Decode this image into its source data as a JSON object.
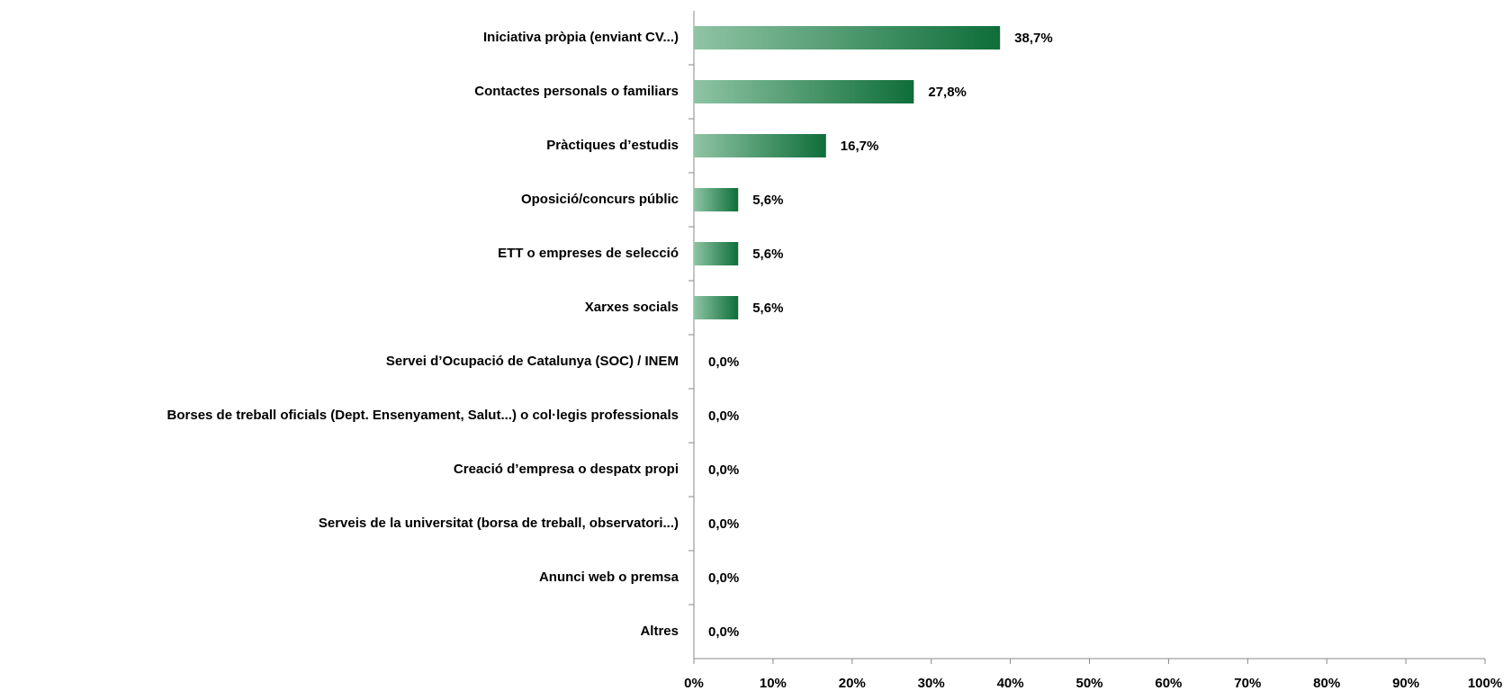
{
  "chart_data": {
    "type": "barh",
    "categories": [
      "Iniciativa pròpia (enviant CV...)",
      "Contactes personals o familiars",
      "Pràctiques d’estudis",
      "Oposició/concurs públic",
      "ETT o empreses de selecció",
      "Xarxes socials",
      "Servei d’Ocupació de Catalunya (SOC) / INEM",
      "Borses de treball oficials (Dept. Ensenyament, Salut...) o col·legis professionals",
      "Creació d’empresa o despatx propi",
      "Serveis de la universitat (borsa de treball, observatori...)",
      "Anunci web o premsa",
      "Altres"
    ],
    "values": [
      38.7,
      27.8,
      16.7,
      5.6,
      5.6,
      5.6,
      0,
      0,
      0,
      0,
      0,
      0
    ],
    "value_labels": [
      "38,7%",
      "27,8%",
      "16,7%",
      "5,6%",
      "5,6%",
      "5,6%",
      "0,0%",
      "0,0%",
      "0,0%",
      "0,0%",
      "0,0%",
      "0,0%"
    ],
    "color": [
      "#8fc4a4",
      "#0e6e3a"
    ],
    "xlim": [
      0,
      100
    ],
    "xticks": [
      {
        "value": 0,
        "label": "0%"
      },
      {
        "value": 10,
        "label": "10%"
      },
      {
        "value": 20,
        "label": "20%"
      },
      {
        "value": 30,
        "label": "30%"
      },
      {
        "value": 40,
        "label": "40%"
      },
      {
        "value": 50,
        "label": "50%"
      },
      {
        "value": 60,
        "label": "60%"
      },
      {
        "value": 70,
        "label": "70%"
      },
      {
        "value": 80,
        "label": "80%"
      },
      {
        "value": 90,
        "label": "90%"
      },
      {
        "value": 100,
        "label": "100%"
      }
    ],
    "grid": false
  }
}
